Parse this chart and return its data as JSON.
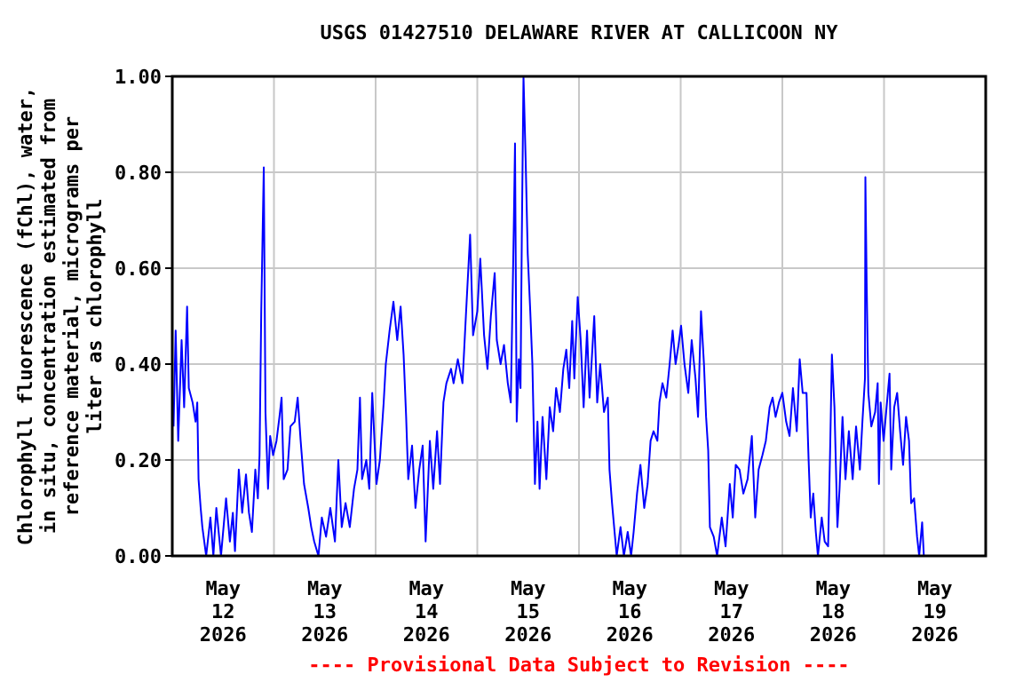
{
  "chart_data": {
    "type": "line",
    "title": "USGS 01427510 DELAWARE RIVER AT CALLICOON NY",
    "ylabel": "Chlorophyll fluorescence (fChl), water, in situ, concentration estimated from reference material, micrograms per liter as chlorophyll",
    "annotations": [
      "---- Provisional Data Subject to Revision ----"
    ],
    "xlim": [
      "2026-05-12T00:00",
      "2026-05-20T00:00"
    ],
    "xticks": [
      {
        "value": "2026-05-12T00:00",
        "label": null
      },
      {
        "value": "2026-05-12T12:00",
        "label": "May 12 2026"
      },
      {
        "value": "2026-05-13T00:00",
        "label": null
      },
      {
        "value": "2026-05-13T12:00",
        "label": "May 13 2026"
      },
      {
        "value": "2026-05-14T00:00",
        "label": null
      },
      {
        "value": "2026-05-14T12:00",
        "label": "May 14 2026"
      },
      {
        "value": "2026-05-15T00:00",
        "label": null
      },
      {
        "value": "2026-05-15T12:00",
        "label": "May 15 2026"
      },
      {
        "value": "2026-05-16T00:00",
        "label": null
      },
      {
        "value": "2026-05-16T12:00",
        "label": "May 16 2026"
      },
      {
        "value": "2026-05-17T00:00",
        "label": null
      },
      {
        "value": "2026-05-17T12:00",
        "label": "May 17 2026"
      },
      {
        "value": "2026-05-18T00:00",
        "label": null
      },
      {
        "value": "2026-05-18T12:00",
        "label": "May 18 2026"
      },
      {
        "value": "2026-05-19T00:00",
        "label": null
      },
      {
        "value": "2026-05-19T12:00",
        "label": "May 19 2026"
      },
      {
        "value": "2026-05-20T00:00",
        "label": null
      }
    ],
    "ylim": [
      0,
      1
    ],
    "yticks": [
      {
        "value": 0,
        "label": "0.00"
      },
      {
        "value": 0.2,
        "label": "0.20"
      },
      {
        "value": 0.4,
        "label": "0.40"
      },
      {
        "value": 0.6,
        "label": "0.60"
      },
      {
        "value": 0.8,
        "label": "0.80"
      },
      {
        "value": 1,
        "label": "1.00"
      }
    ],
    "grid": true,
    "marker": "none",
    "line_style": "solid",
    "series": [
      {
        "color": "#0000ff",
        "x": [
          "2026-05-12T00:18",
          "2026-05-12T00:48",
          "2026-05-12T01:24",
          "2026-05-12T02:12",
          "2026-05-12T02:48",
          "2026-05-12T03:30",
          "2026-05-12T03:54",
          "2026-05-12T04:48",
          "2026-05-12T05:30",
          "2026-05-12T05:54",
          "2026-05-12T06:12",
          "2026-05-12T06:42",
          "2026-05-12T07:06",
          "2026-05-12T08:00",
          "2026-05-12T09:00",
          "2026-05-12T09:42",
          "2026-05-12T10:24",
          "2026-05-12T11:30",
          "2026-05-12T12:42",
          "2026-05-12T13:36",
          "2026-05-12T14:18",
          "2026-05-12T14:48",
          "2026-05-12T15:42",
          "2026-05-12T16:30",
          "2026-05-12T17:24",
          "2026-05-12T18:06",
          "2026-05-12T18:48",
          "2026-05-12T19:36",
          "2026-05-12T20:12",
          "2026-05-12T20:36",
          "2026-05-12T21:00",
          "2026-05-12T21:36",
          "2026-05-12T22:00",
          "2026-05-12T22:36",
          "2026-05-12T23:06",
          "2026-05-12T23:48",
          "2026-05-13T00:36",
          "2026-05-13T01:18",
          "2026-05-13T01:48",
          "2026-05-13T02:18",
          "2026-05-13T03:12",
          "2026-05-13T03:54",
          "2026-05-13T04:54",
          "2026-05-13T05:36",
          "2026-05-13T06:18",
          "2026-05-13T07:06",
          "2026-05-13T08:06",
          "2026-05-13T08:48",
          "2026-05-13T09:30",
          "2026-05-13T10:30",
          "2026-05-13T11:18",
          "2026-05-13T12:18",
          "2026-05-13T13:18",
          "2026-05-13T14:24",
          "2026-05-13T15:12",
          "2026-05-13T16:00",
          "2026-05-13T16:54",
          "2026-05-13T17:54",
          "2026-05-13T18:54",
          "2026-05-13T19:42",
          "2026-05-13T20:18",
          "2026-05-13T20:48",
          "2026-05-13T21:48",
          "2026-05-13T22:30",
          "2026-05-13T23:12",
          "2026-05-14T00:12",
          "2026-05-14T01:00",
          "2026-05-14T01:54",
          "2026-05-14T02:24",
          "2026-05-14T03:18",
          "2026-05-14T04:12",
          "2026-05-14T05:06",
          "2026-05-14T05:54",
          "2026-05-14T06:36",
          "2026-05-14T07:12",
          "2026-05-14T07:42",
          "2026-05-14T08:36",
          "2026-05-14T09:24",
          "2026-05-14T10:18",
          "2026-05-14T11:06",
          "2026-05-14T11:48",
          "2026-05-14T12:48",
          "2026-05-14T13:36",
          "2026-05-14T14:30",
          "2026-05-14T15:12",
          "2026-05-14T16:00",
          "2026-05-14T16:42",
          "2026-05-14T17:48",
          "2026-05-14T18:24",
          "2026-05-14T19:24",
          "2026-05-14T20:30",
          "2026-05-14T21:18",
          "2026-05-14T22:18",
          "2026-05-14T23:00",
          "2026-05-15T00:00",
          "2026-05-15T00:42",
          "2026-05-15T01:36",
          "2026-05-15T02:24",
          "2026-05-15T03:12",
          "2026-05-15T04:06",
          "2026-05-15T04:36",
          "2026-05-15T05:30",
          "2026-05-15T06:18",
          "2026-05-15T07:12",
          "2026-05-15T07:54",
          "2026-05-15T08:36",
          "2026-05-15T08:54",
          "2026-05-15T09:18",
          "2026-05-15T09:48",
          "2026-05-15T10:12",
          "2026-05-15T10:30",
          "2026-05-15T10:54",
          "2026-05-15T11:24",
          "2026-05-15T11:54",
          "2026-05-15T12:30",
          "2026-05-15T13:00",
          "2026-05-15T13:36",
          "2026-05-15T14:12",
          "2026-05-15T14:42",
          "2026-05-15T15:24",
          "2026-05-15T16:18",
          "2026-05-15T17:06",
          "2026-05-15T17:54",
          "2026-05-15T18:36",
          "2026-05-15T19:30",
          "2026-05-15T20:18",
          "2026-05-15T21:00",
          "2026-05-15T21:42",
          "2026-05-15T22:24",
          "2026-05-15T22:54",
          "2026-05-15T23:42",
          "2026-05-16T00:24",
          "2026-05-16T01:06",
          "2026-05-16T01:54",
          "2026-05-16T02:30",
          "2026-05-16T03:36",
          "2026-05-16T04:18",
          "2026-05-16T05:00",
          "2026-05-16T05:54",
          "2026-05-16T06:48",
          "2026-05-16T07:12",
          "2026-05-16T07:48",
          "2026-05-16T08:24",
          "2026-05-16T08:54",
          "2026-05-16T09:48",
          "2026-05-16T10:36",
          "2026-05-16T11:30",
          "2026-05-16T12:18",
          "2026-05-16T12:54",
          "2026-05-16T13:42",
          "2026-05-16T14:30",
          "2026-05-16T15:24",
          "2026-05-16T16:12",
          "2026-05-16T16:54",
          "2026-05-16T17:36",
          "2026-05-16T18:30",
          "2026-05-16T19:00",
          "2026-05-16T19:42",
          "2026-05-16T20:36",
          "2026-05-16T21:24",
          "2026-05-16T22:06",
          "2026-05-16T22:48",
          "2026-05-16T23:30",
          "2026-05-17T00:06",
          "2026-05-17T00:54",
          "2026-05-17T01:48",
          "2026-05-17T02:36",
          "2026-05-17T03:30",
          "2026-05-17T04:06",
          "2026-05-17T04:48",
          "2026-05-17T05:30",
          "2026-05-17T06:00",
          "2026-05-17T06:30",
          "2026-05-17T06:54",
          "2026-05-17T07:48",
          "2026-05-17T08:36",
          "2026-05-17T09:42",
          "2026-05-17T10:36",
          "2026-05-17T11:36",
          "2026-05-17T12:18",
          "2026-05-17T13:00",
          "2026-05-17T13:54",
          "2026-05-17T14:48",
          "2026-05-17T15:48",
          "2026-05-17T16:48",
          "2026-05-17T17:36",
          "2026-05-17T18:24",
          "2026-05-17T19:18",
          "2026-05-17T20:06",
          "2026-05-17T21:00",
          "2026-05-17T21:42",
          "2026-05-17T22:24",
          "2026-05-17T23:12",
          "2026-05-18T00:00",
          "2026-05-18T00:54",
          "2026-05-18T01:42",
          "2026-05-18T02:30",
          "2026-05-18T03:24",
          "2026-05-18T04:06",
          "2026-05-18T04:48",
          "2026-05-18T05:42",
          "2026-05-18T06:12",
          "2026-05-18T06:42",
          "2026-05-18T07:18",
          "2026-05-18T07:54",
          "2026-05-18T08:24",
          "2026-05-18T09:18",
          "2026-05-18T10:00",
          "2026-05-18T10:48",
          "2026-05-18T11:18",
          "2026-05-18T11:42",
          "2026-05-18T12:18",
          "2026-05-18T13:00",
          "2026-05-18T13:30",
          "2026-05-18T14:12",
          "2026-05-18T14:54",
          "2026-05-18T15:42",
          "2026-05-18T16:36",
          "2026-05-18T17:24",
          "2026-05-18T18:18",
          "2026-05-18T18:54",
          "2026-05-18T19:30",
          "2026-05-18T19:36",
          "2026-05-18T19:54",
          "2026-05-18T20:18",
          "2026-05-18T21:00",
          "2026-05-18T21:54",
          "2026-05-18T22:30",
          "2026-05-18T22:48",
          "2026-05-18T23:12",
          "2026-05-18T23:54",
          "2026-05-19T00:36",
          "2026-05-19T01:18",
          "2026-05-19T01:42",
          "2026-05-19T02:24",
          "2026-05-19T03:06",
          "2026-05-19T03:48",
          "2026-05-19T04:30",
          "2026-05-19T05:12",
          "2026-05-19T05:54",
          "2026-05-19T06:24",
          "2026-05-19T07:06",
          "2026-05-19T07:48",
          "2026-05-19T08:18",
          "2026-05-19T09:00",
          "2026-05-19T09:24"
        ],
        "values": [
          0.27,
          0.47,
          0.24,
          0.45,
          0.31,
          0.52,
          0.35,
          0.32,
          0.28,
          0.32,
          0.16,
          0.1,
          0.06,
          0.0,
          0.08,
          0.0,
          0.1,
          0.0,
          0.12,
          0.03,
          0.09,
          0.01,
          0.18,
          0.09,
          0.17,
          0.09,
          0.05,
          0.18,
          0.12,
          0.21,
          0.51,
          0.81,
          0.3,
          0.14,
          0.25,
          0.21,
          0.24,
          0.29,
          0.33,
          0.16,
          0.18,
          0.27,
          0.28,
          0.33,
          0.24,
          0.15,
          0.1,
          0.06,
          0.03,
          0.0,
          0.08,
          0.04,
          0.1,
          0.03,
          0.2,
          0.06,
          0.11,
          0.06,
          0.14,
          0.18,
          0.33,
          0.16,
          0.2,
          0.14,
          0.34,
          0.15,
          0.2,
          0.32,
          0.4,
          0.47,
          0.53,
          0.45,
          0.52,
          0.42,
          0.29,
          0.16,
          0.23,
          0.1,
          0.18,
          0.23,
          0.03,
          0.24,
          0.14,
          0.26,
          0.15,
          0.32,
          0.36,
          0.39,
          0.36,
          0.41,
          0.36,
          0.5,
          0.67,
          0.46,
          0.51,
          0.62,
          0.46,
          0.39,
          0.5,
          0.59,
          0.45,
          0.4,
          0.44,
          0.36,
          0.32,
          0.68,
          0.86,
          0.28,
          0.41,
          0.35,
          0.66,
          1.0,
          0.83,
          0.63,
          0.51,
          0.4,
          0.15,
          0.28,
          0.14,
          0.29,
          0.16,
          0.31,
          0.26,
          0.35,
          0.3,
          0.39,
          0.43,
          0.35,
          0.49,
          0.37,
          0.54,
          0.45,
          0.31,
          0.47,
          0.33,
          0.5,
          0.32,
          0.4,
          0.3,
          0.33,
          0.18,
          0.11,
          0.05,
          0.0,
          0.06,
          0.0,
          0.05,
          0.0,
          0.05,
          0.13,
          0.19,
          0.1,
          0.15,
          0.24,
          0.26,
          0.24,
          0.32,
          0.36,
          0.33,
          0.4,
          0.47,
          0.4,
          0.44,
          0.48,
          0.4,
          0.34,
          0.45,
          0.37,
          0.29,
          0.51,
          0.4,
          0.29,
          0.22,
          0.06,
          0.04,
          0.0,
          0.08,
          0.02,
          0.15,
          0.08,
          0.19,
          0.18,
          0.13,
          0.16,
          0.25,
          0.08,
          0.18,
          0.21,
          0.24,
          0.31,
          0.33,
          0.29,
          0.32,
          0.34,
          0.28,
          0.25,
          0.35,
          0.26,
          0.41,
          0.34,
          0.34,
          0.2,
          0.08,
          0.13,
          0.05,
          0.0,
          0.08,
          0.03,
          0.02,
          0.23,
          0.42,
          0.31,
          0.06,
          0.14,
          0.29,
          0.16,
          0.26,
          0.16,
          0.27,
          0.18,
          0.28,
          0.37,
          0.79,
          0.57,
          0.34,
          0.27,
          0.3,
          0.36,
          0.15,
          0.32,
          0.24,
          0.31,
          0.38,
          0.18,
          0.31,
          0.34,
          0.26,
          0.19,
          0.29,
          0.24,
          0.11,
          0.12,
          0.04,
          0.0,
          0.07,
          0.0
        ]
      }
    ]
  }
}
